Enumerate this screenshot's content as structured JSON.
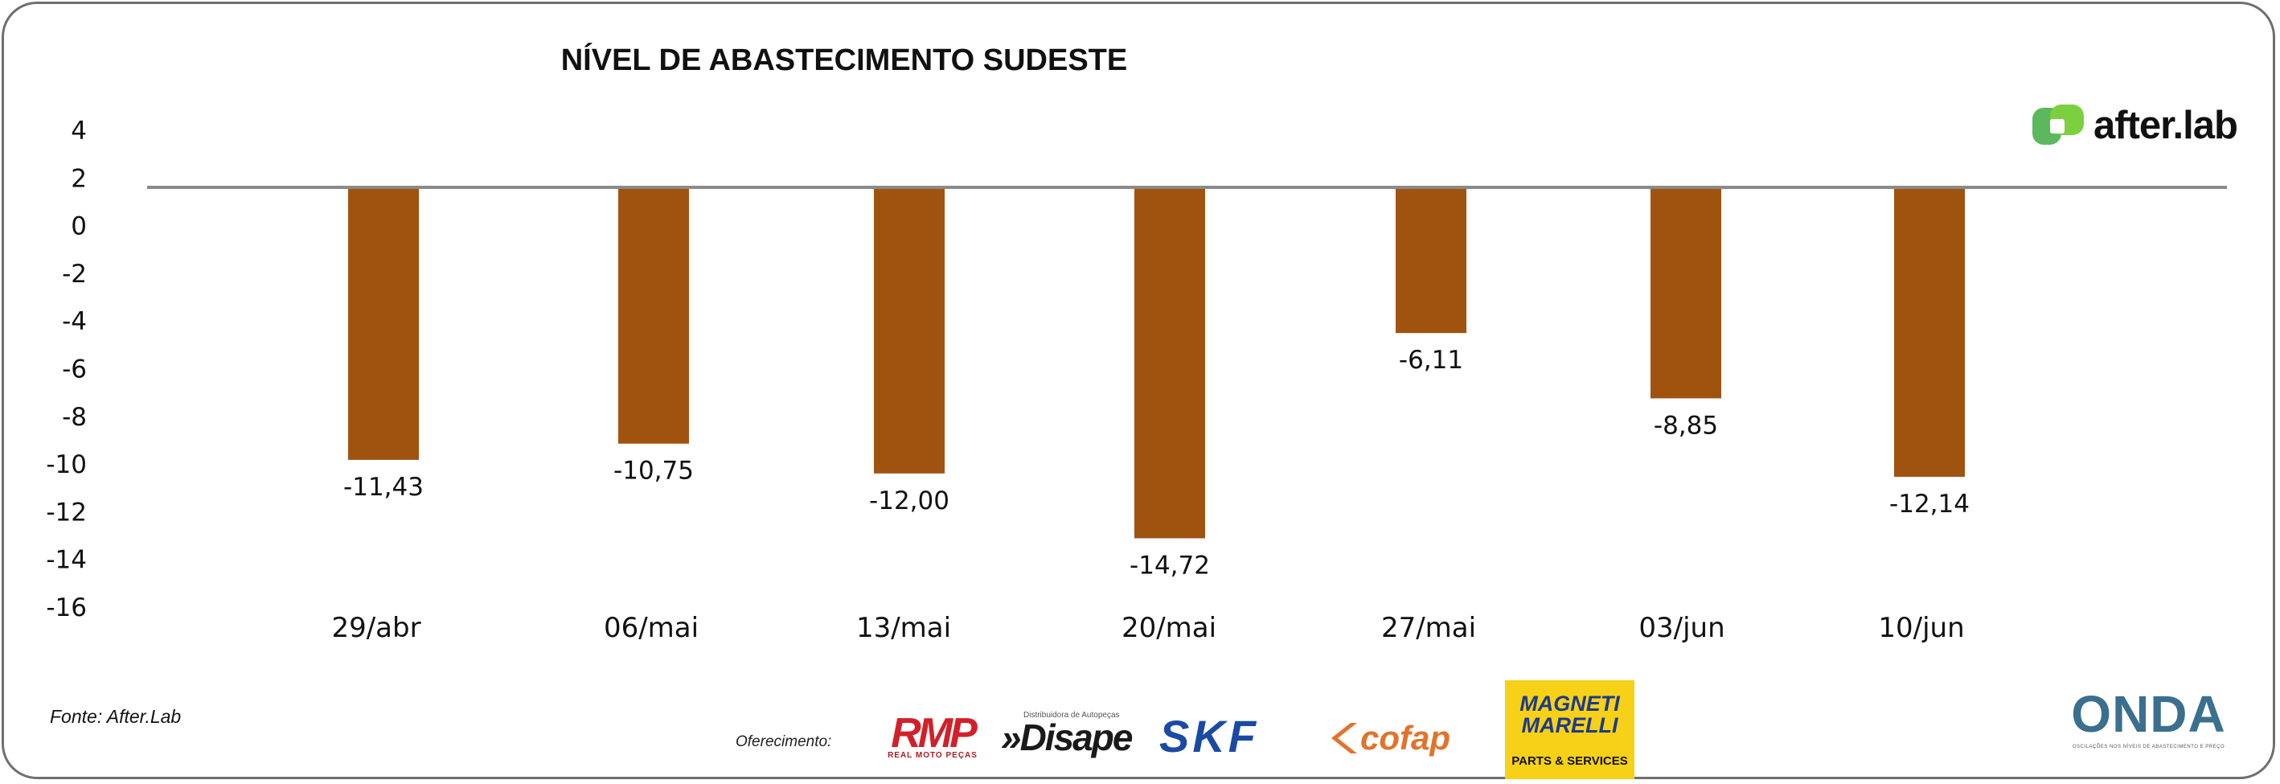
{
  "chart_data": {
    "type": "bar",
    "title": "NÍVEL DE ABASTECIMENTO SUDESTE",
    "categories": [
      "29/abr",
      "06/mai",
      "13/mai",
      "20/mai",
      "27/mai",
      "03/jun",
      "10/jun"
    ],
    "values": [
      -11.43,
      -10.75,
      -12.0,
      -14.72,
      -6.11,
      -8.85,
      -12.14
    ],
    "data_labels": [
      "-11,43",
      "-10,75",
      "-12,00",
      "-14,72",
      "-6,11",
      "-8,85",
      "-12,14"
    ],
    "yticks": [
      "4",
      "2",
      "0",
      "-2",
      "-4",
      "-6",
      "-8",
      "-10",
      "-12",
      "-14",
      "-16"
    ],
    "xlabel": "",
    "ylabel": "",
    "bar_color": "#a0530f",
    "baseline_color": "#8a8a8a",
    "grid": false,
    "legend": "none"
  },
  "brand": {
    "name": "after.lab",
    "mark_color": "#5cb85c"
  },
  "footer": {
    "source": "Fonte: After.Lab",
    "sponsor_label": "Oferecimento:",
    "sponsors": {
      "rmp": {
        "main": "RMP",
        "sub": "REAL MOTO PEÇAS",
        "color": "#d1202a"
      },
      "disape": {
        "main": "»Disape",
        "sub": "Distribuidora de Autopeças"
      },
      "skf": {
        "main": "SKF",
        "color": "#1b4aa5"
      },
      "cofap": {
        "main": "cofap",
        "color": "#e2732b"
      },
      "magneti_marelli": {
        "main_line1": "MAGNETI",
        "main_line2": "MARELLI",
        "sub": "PARTS & SERVICES",
        "color": "#f7d117"
      },
      "onda": {
        "main": "ONDA",
        "sub": "OSCILAÇÕES NOS NÍVEIS DE ABASTECIMENTO E PREÇO"
      }
    }
  }
}
